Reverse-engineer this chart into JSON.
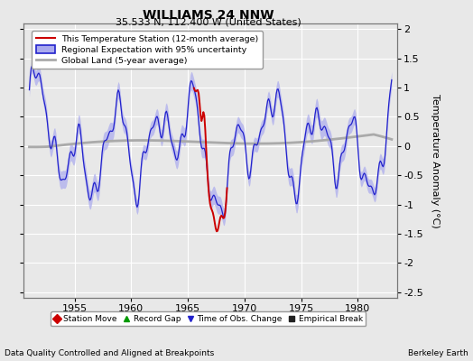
{
  "title": "WILLIAMS 24 NNW",
  "subtitle": "35.533 N, 112.400 W (United States)",
  "xlabel_bottom": "Data Quality Controlled and Aligned at Breakpoints",
  "xlabel_right": "Berkeley Earth",
  "ylabel": "Temperature Anomaly (°C)",
  "xlim": [
    1950.5,
    1983.5
  ],
  "ylim": [
    -2.6,
    2.1
  ],
  "yticks": [
    -2.5,
    -2,
    -1.5,
    -1,
    -0.5,
    0,
    0.5,
    1,
    1.5,
    2
  ],
  "xticks": [
    1955,
    1960,
    1965,
    1970,
    1975,
    1980
  ],
  "bg_color": "#e8e8e8",
  "grid_color": "#ffffff",
  "regional_color": "#2222cc",
  "regional_fill_color": "#aaaaee",
  "station_color": "#cc0000",
  "global_color": "#aaaaaa",
  "station_start": 1965.5,
  "station_end": 1968.5,
  "data_start": 1951.0,
  "data_end": 1983.0
}
